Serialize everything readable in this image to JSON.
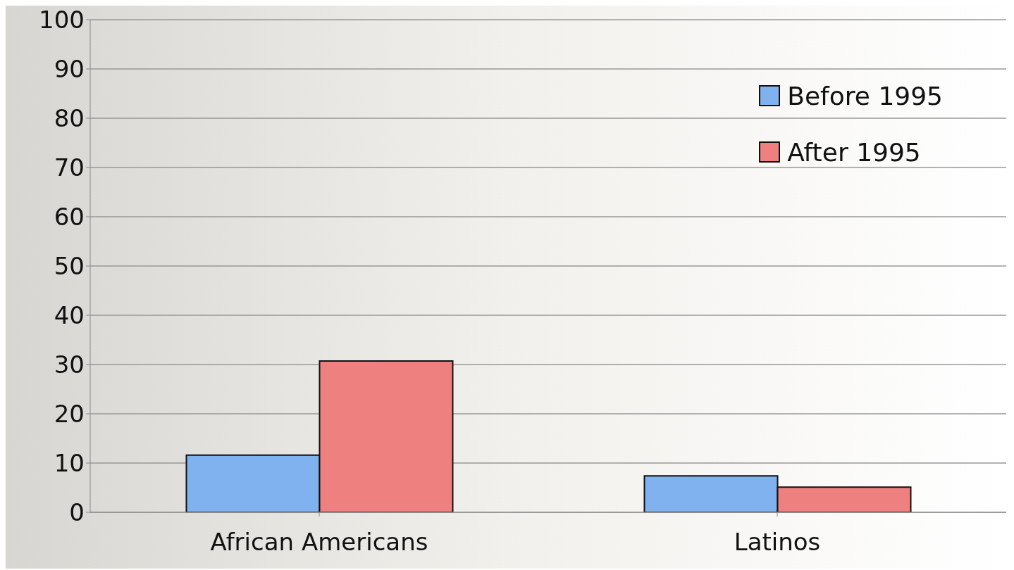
{
  "chart_data": {
    "type": "bar",
    "categories": [
      "African Americans",
      "Latinos"
    ],
    "series": [
      {
        "name": "Before 1995",
        "color": "#7fb2ef",
        "values": [
          11.6,
          7.4
        ]
      },
      {
        "name": "After 1995",
        "color": "#ef8080",
        "values": [
          30.7,
          5.1
        ]
      }
    ],
    "ylim": [
      0,
      100
    ],
    "yticks": [
      0,
      10,
      20,
      30,
      40,
      50,
      60,
      70,
      80,
      90,
      100
    ],
    "grid": "y",
    "legend": "top right"
  }
}
